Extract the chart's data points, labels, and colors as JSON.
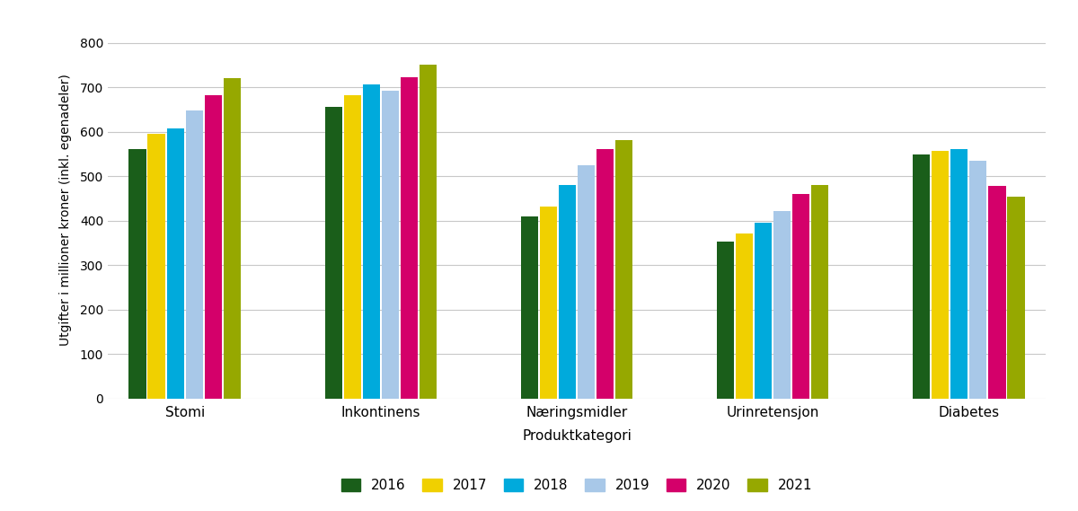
{
  "categories": [
    "Stomi",
    "Inkontinens",
    "Næringsmidler",
    "Urinretensjon",
    "Diabetes"
  ],
  "years": [
    "2016",
    "2017",
    "2018",
    "2019",
    "2020",
    "2021"
  ],
  "colors": [
    "#1a5e1a",
    "#f0d000",
    "#00aadc",
    "#a8c8e8",
    "#d4006a",
    "#96a800"
  ],
  "values": {
    "Stomi": [
      560,
      595,
      608,
      648,
      682,
      720
    ],
    "Inkontinens": [
      655,
      682,
      707,
      692,
      723,
      750
    ],
    "Næringsmidler": [
      410,
      432,
      480,
      524,
      560,
      582
    ],
    "Urinretensjon": [
      352,
      372,
      395,
      422,
      460,
      480
    ],
    "Diabetes": [
      548,
      557,
      560,
      534,
      478,
      453
    ]
  },
  "ylabel": "Utgifter i millioner kroner (inkl. egenadeler)",
  "xlabel": "Produktkategori",
  "ylim": [
    0,
    850
  ],
  "yticks": [
    0,
    100,
    200,
    300,
    400,
    500,
    600,
    700,
    800
  ],
  "background_color": "#ffffff",
  "grid_color": "#c8c8c8",
  "bar_width": 0.135,
  "figsize": [
    12.0,
    5.69
  ],
  "dpi": 100
}
